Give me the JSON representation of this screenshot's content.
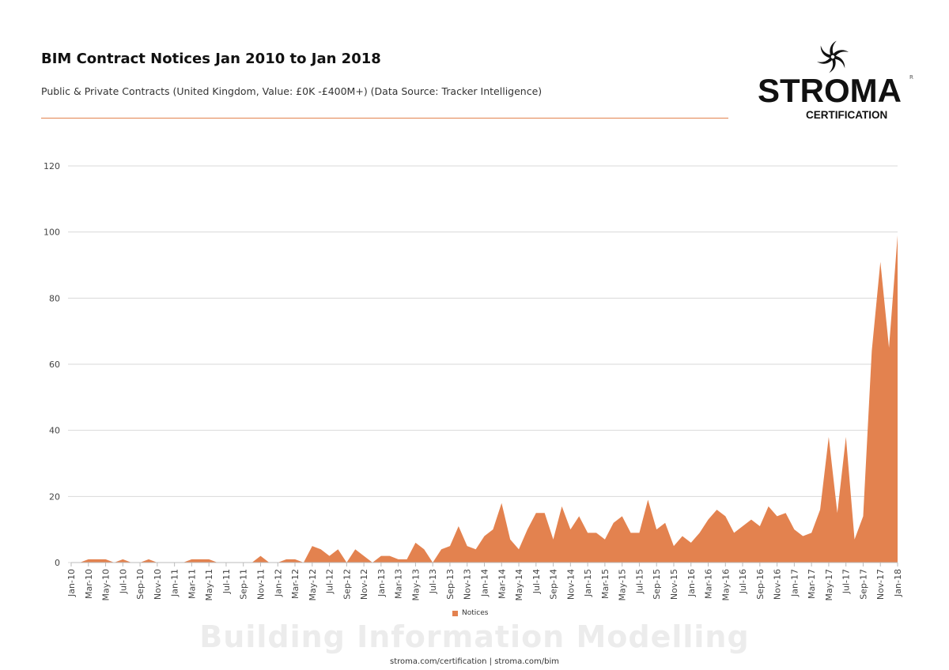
{
  "header": {
    "title": "BIM Contract Notices Jan 2010 to Jan 2018",
    "subtitle": "Public & Private Contracts (United Kingdom, Value: £0K -£400M+) (Data Source: Tracker Intelligence)"
  },
  "logo": {
    "word": "STROMA",
    "sub": "CERTIFICATION",
    "registered": "R"
  },
  "footer": {
    "watermark": "Building Information Modelling",
    "links": "stroma.com/certification | stroma.com/bim"
  },
  "colors": {
    "accent": "#e3824f",
    "grid": "#d9d9d9"
  },
  "chart_data": {
    "type": "area",
    "title": "BIM Contract Notices Jan 2010 to Jan 2018",
    "xlabel": "",
    "ylabel": "",
    "ylim": [
      0,
      120
    ],
    "yticks": [
      0,
      20,
      40,
      60,
      80,
      100,
      120
    ],
    "grid": true,
    "legend": "bottom",
    "x": [
      "Jan-10",
      "Feb-10",
      "Mar-10",
      "Apr-10",
      "May-10",
      "Jun-10",
      "Jul-10",
      "Aug-10",
      "Sep-10",
      "Oct-10",
      "Nov-10",
      "Dec-10",
      "Jan-11",
      "Feb-11",
      "Mar-11",
      "Apr-11",
      "May-11",
      "Jun-11",
      "Jul-11",
      "Aug-11",
      "Sep-11",
      "Oct-11",
      "Nov-11",
      "Dec-11",
      "Jan-12",
      "Feb-12",
      "Mar-12",
      "Apr-12",
      "May-12",
      "Jun-12",
      "Jul-12",
      "Aug-12",
      "Sep-12",
      "Oct-12",
      "Nov-12",
      "Dec-12",
      "Jan-13",
      "Feb-13",
      "Mar-13",
      "Apr-13",
      "May-13",
      "Jun-13",
      "Jul-13",
      "Aug-13",
      "Sep-13",
      "Oct-13",
      "Nov-13",
      "Dec-13",
      "Jan-14",
      "Feb-14",
      "Mar-14",
      "Apr-14",
      "May-14",
      "Jun-14",
      "Jul-14",
      "Aug-14",
      "Sep-14",
      "Oct-14",
      "Nov-14",
      "Dec-14",
      "Jan-15",
      "Feb-15",
      "Mar-15",
      "Apr-15",
      "May-15",
      "Jun-15",
      "Jul-15",
      "Aug-15",
      "Sep-15",
      "Oct-15",
      "Nov-15",
      "Dec-15",
      "Jan-16",
      "Feb-16",
      "Mar-16",
      "Apr-16",
      "May-16",
      "Jun-16",
      "Jul-16",
      "Aug-16",
      "Sep-16",
      "Oct-16",
      "Nov-16",
      "Dec-16",
      "Jan-17",
      "Feb-17",
      "Mar-17",
      "Apr-17",
      "May-17",
      "Jun-17",
      "Jul-17",
      "Aug-17",
      "Sep-17",
      "Oct-17",
      "Nov-17",
      "Dec-17",
      "Jan-18"
    ],
    "series": [
      {
        "name": "Notices",
        "values": [
          0,
          0,
          1,
          1,
          1,
          0,
          1,
          0,
          0,
          1,
          0,
          0,
          0,
          0,
          1,
          1,
          1,
          0,
          0,
          0,
          0,
          0,
          2,
          0,
          0,
          1,
          1,
          0,
          5,
          4,
          2,
          4,
          0,
          4,
          2,
          0,
          2,
          2,
          1,
          1,
          6,
          4,
          0,
          4,
          5,
          11,
          5,
          4,
          8,
          10,
          18,
          7,
          4,
          10,
          15,
          15,
          7,
          17,
          10,
          14,
          9,
          9,
          7,
          12,
          14,
          9,
          9,
          19,
          10,
          12,
          5,
          8,
          6,
          9,
          13,
          16,
          14,
          9,
          11,
          13,
          11,
          17,
          14,
          15,
          10,
          8,
          9,
          16,
          38,
          15,
          38,
          7,
          14,
          64,
          91,
          65,
          99
        ]
      }
    ]
  }
}
